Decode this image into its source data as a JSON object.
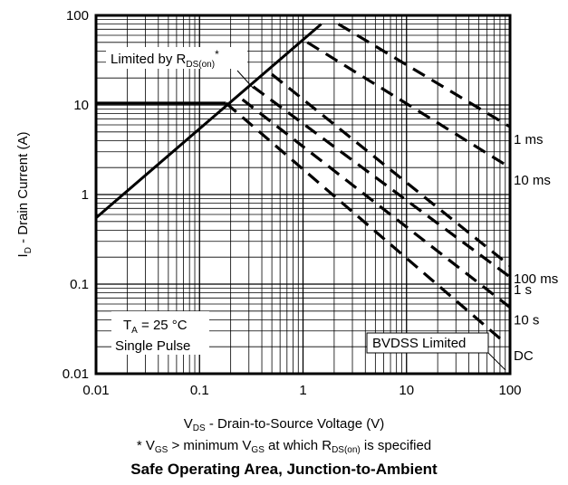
{
  "chart_data": {
    "type": "line",
    "title": "Safe Operating Area, Junction-to-Ambient",
    "xscale": "log",
    "yscale": "log",
    "xlim": [
      0.01,
      100
    ],
    "ylim": [
      0.01,
      100
    ],
    "grid": true,
    "x_ticks": [
      "0.01",
      "0.1",
      "1",
      "10",
      "100"
    ],
    "y_ticks": [
      "0.01",
      "0.1",
      "1",
      "10",
      "100"
    ],
    "xlabel": {
      "main": "V",
      "sub": "DS",
      "rest": " - Drain-to-Source Voltage (V)"
    },
    "ylabel": {
      "main": "I",
      "sub": "D",
      "rest": " - Drain Current (A)"
    },
    "footnote": {
      "p1": "* V",
      "s1": "GS",
      "p2": " > minimum V",
      "s2": "GS",
      "p3": " at which R",
      "s3": "DS(on)",
      "p4": " is specified"
    },
    "annotations": {
      "rds_main": "Limited by R",
      "rds_sub": "DS(on)",
      "rds_star": "*",
      "ta_main": "T",
      "ta_sub": "A",
      "ta_rest": " = 25 °C",
      "pulse": "Single Pulse",
      "bvdss": "BVDSS Limited"
    },
    "limits": {
      "current_limit": {
        "x": [
          0.01,
          0.18
        ],
        "y": [
          10.5,
          10.5
        ]
      },
      "rds_on_limit": {
        "x": [
          0.01,
          1.5
        ],
        "y": [
          0.55,
          80
        ]
      }
    },
    "series": [
      {
        "name": "1 ms",
        "style": "dashed",
        "x": [
          2.2,
          100
        ],
        "y": [
          80,
          5.7
        ]
      },
      {
        "name": "10 ms",
        "style": "dashed",
        "x": [
          1.1,
          100
        ],
        "y": [
          50,
          2.0
        ]
      },
      {
        "name": "100 ms",
        "style": "dashed",
        "x": [
          0.5,
          100
        ],
        "y": [
          22,
          0.16
        ]
      },
      {
        "name": "1 s",
        "style": "dashed",
        "x": [
          0.33,
          100
        ],
        "y": [
          16,
          0.12
        ]
      },
      {
        "name": "10 s",
        "style": "dashed",
        "x": [
          0.26,
          100
        ],
        "y": [
          11.5,
          0.055
        ]
      },
      {
        "name": "DC",
        "style": "dashed",
        "x": [
          0.18,
          90
        ],
        "y": [
          10.5,
          0.022
        ]
      }
    ]
  }
}
